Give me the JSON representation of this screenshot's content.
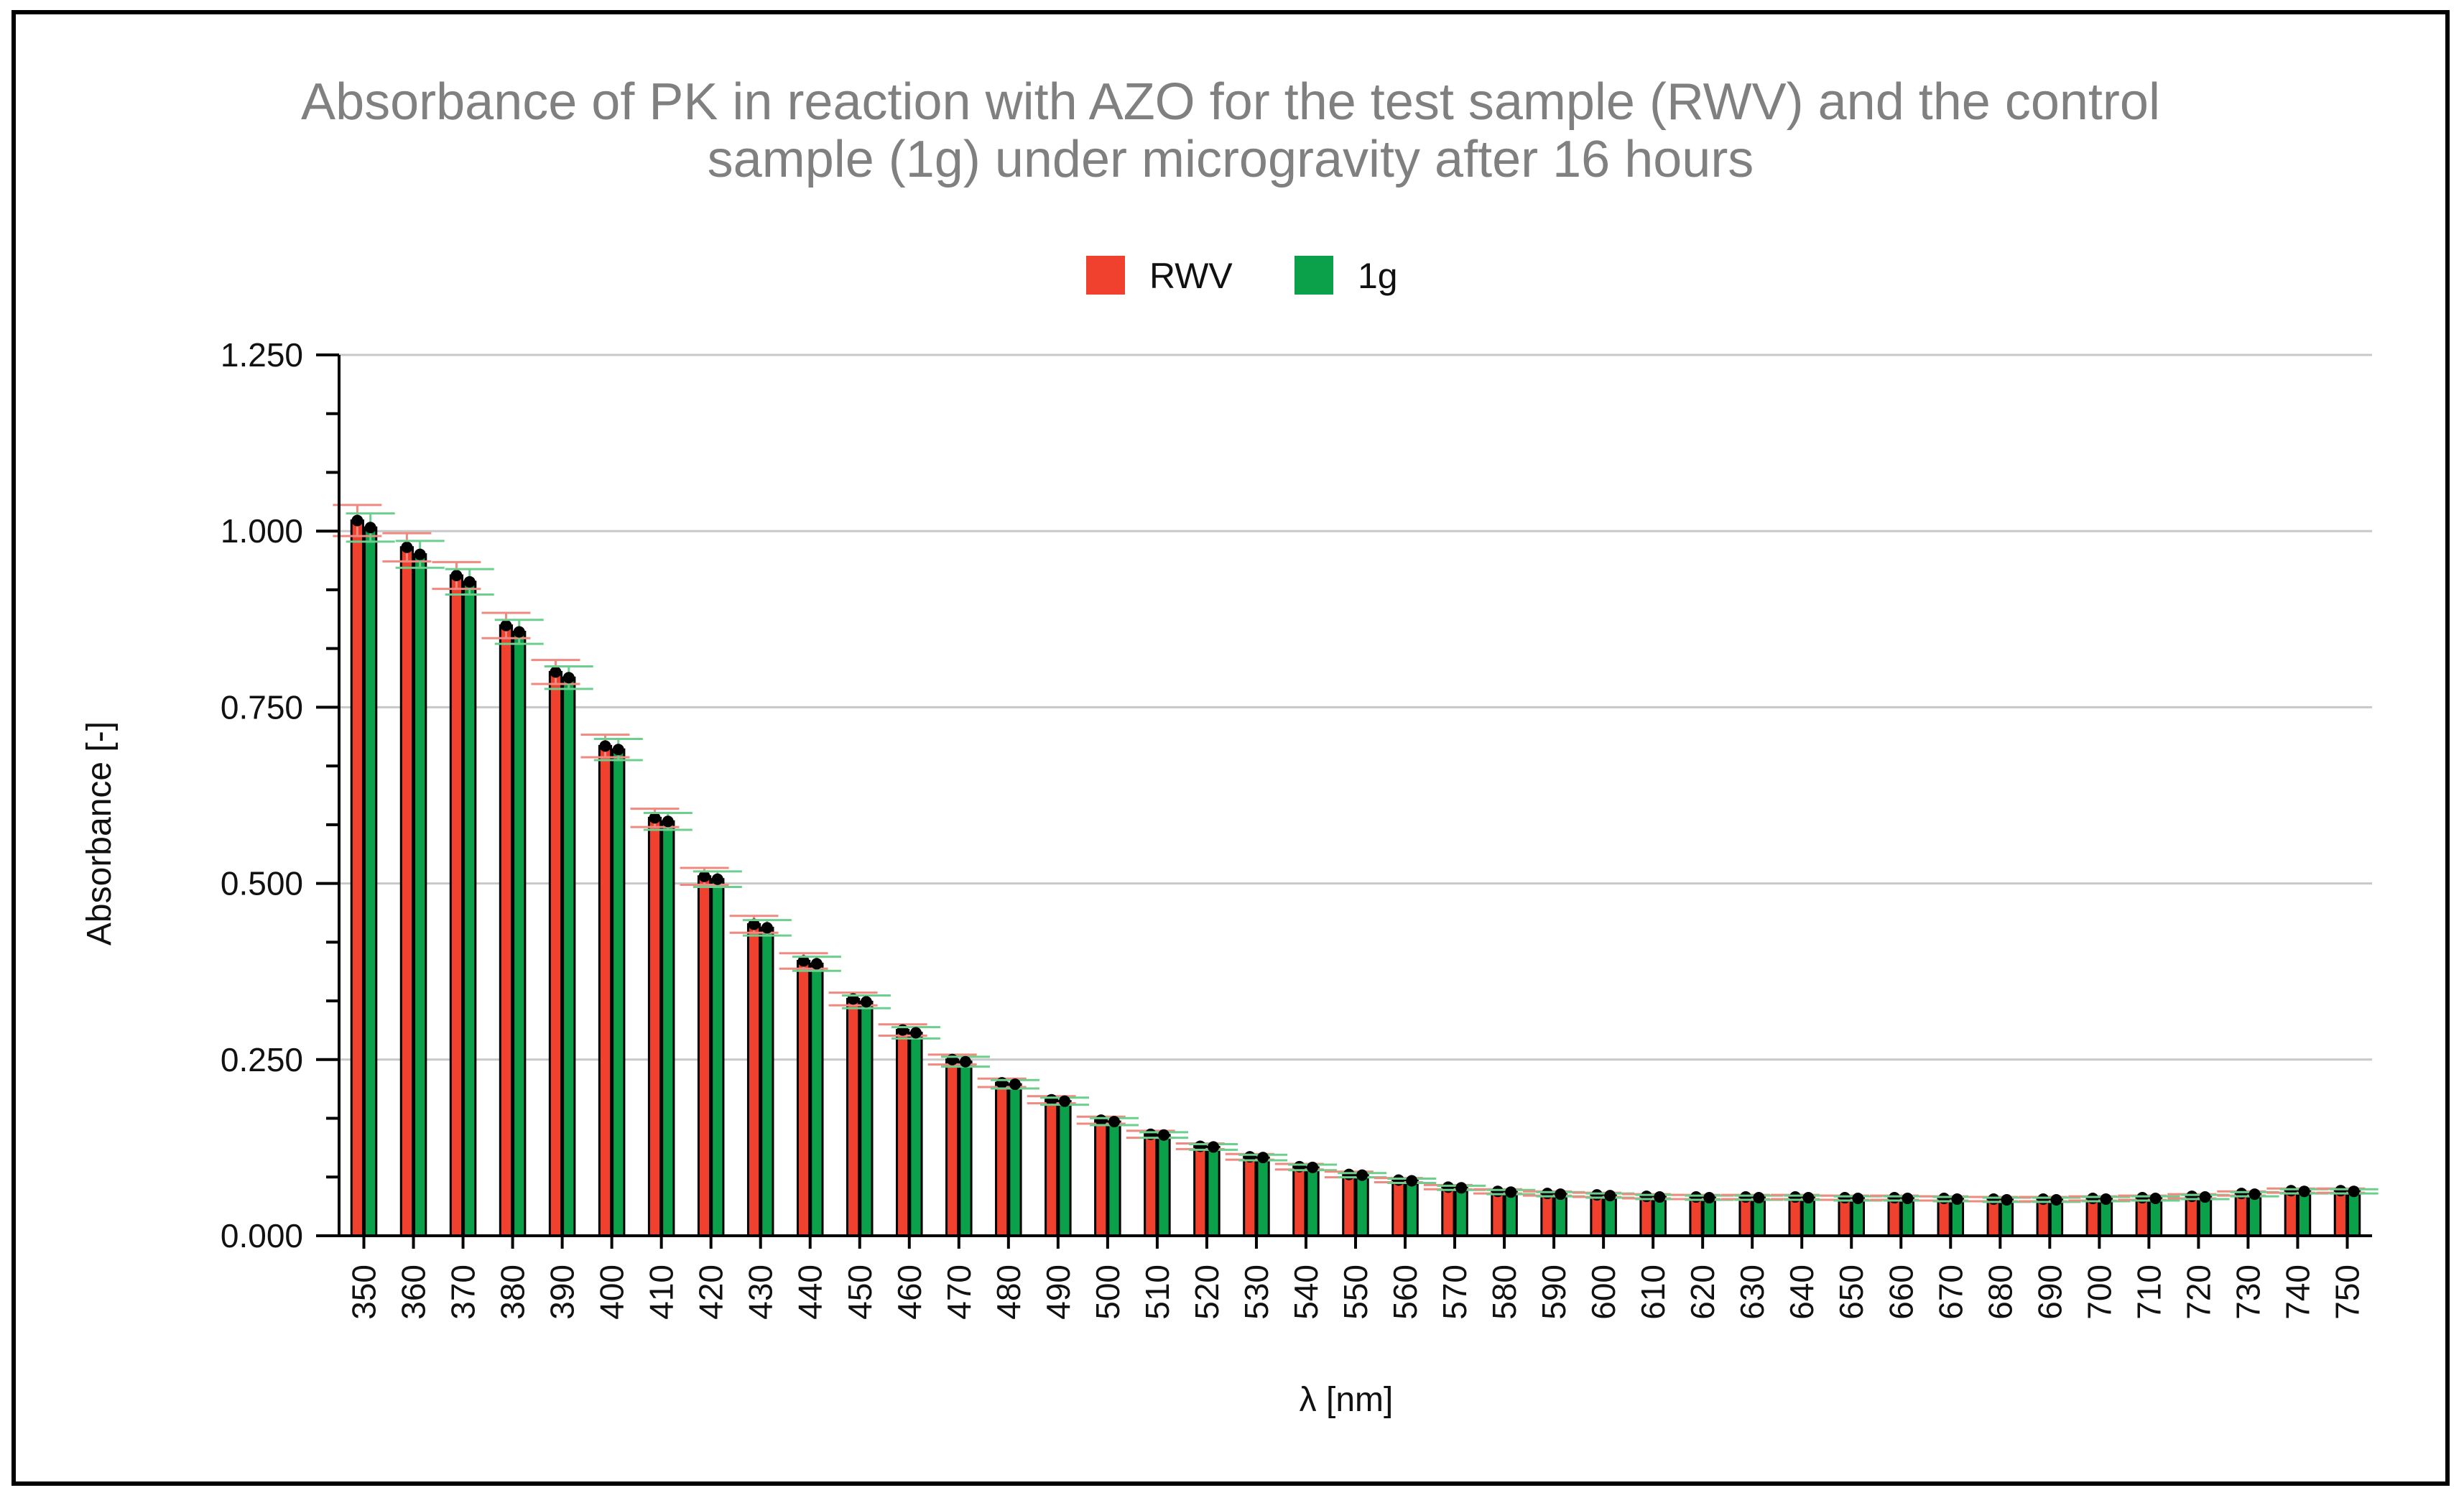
{
  "chart_data": {
    "type": "bar",
    "title_lines": [
      "Absorbance of PK in reaction with AZO for the test sample (RWV) and the control",
      "sample (1g) under microgravity after 16 hours"
    ],
    "xlabel": "λ [nm]",
    "ylabel": "Absorbance [-]",
    "ylim": [
      0,
      1.25
    ],
    "yticks": [
      "0.000",
      "0.250",
      "0.500",
      "0.750",
      "1.000",
      "1.250"
    ],
    "grid": "horizontal",
    "legend_position": "top-center",
    "categories": [
      "350",
      "360",
      "370",
      "380",
      "390",
      "400",
      "410",
      "420",
      "430",
      "440",
      "450",
      "460",
      "470",
      "480",
      "490",
      "500",
      "510",
      "520",
      "530",
      "540",
      "550",
      "560",
      "570",
      "580",
      "590",
      "600",
      "610",
      "620",
      "630",
      "640",
      "650",
      "660",
      "670",
      "680",
      "690",
      "700",
      "710",
      "720",
      "730",
      "740",
      "750"
    ],
    "series": [
      {
        "name": "RWV",
        "color": "#f0402e",
        "values": [
          1.015,
          0.977,
          0.937,
          0.866,
          0.8,
          0.695,
          0.593,
          0.51,
          0.442,
          0.39,
          0.336,
          0.292,
          0.25,
          0.217,
          0.193,
          0.164,
          0.144,
          0.127,
          0.112,
          0.098,
          0.087,
          0.079,
          0.069,
          0.063,
          0.06,
          0.058,
          0.056,
          0.055,
          0.055,
          0.055,
          0.054,
          0.054,
          0.053,
          0.052,
          0.052,
          0.053,
          0.054,
          0.056,
          0.06,
          0.064,
          0.064
        ],
        "errors": [
          0.022,
          0.02,
          0.019,
          0.018,
          0.017,
          0.016,
          0.013,
          0.012,
          0.012,
          0.011,
          0.009,
          0.008,
          0.007,
          0.006,
          0.005,
          0.005,
          0.005,
          0.004,
          0.004,
          0.004,
          0.004,
          0.003,
          0.003,
          0.003,
          0.003,
          0.003,
          0.003,
          0.003,
          0.003,
          0.003,
          0.003,
          0.003,
          0.003,
          0.003,
          0.003,
          0.003,
          0.003,
          0.003,
          0.003,
          0.003,
          0.003
        ]
      },
      {
        "name": "1g",
        "color": "#0aa14a",
        "values": [
          1.005,
          0.967,
          0.928,
          0.857,
          0.792,
          0.69,
          0.588,
          0.506,
          0.437,
          0.386,
          0.332,
          0.288,
          0.247,
          0.215,
          0.191,
          0.162,
          0.143,
          0.126,
          0.111,
          0.097,
          0.086,
          0.078,
          0.068,
          0.062,
          0.059,
          0.057,
          0.055,
          0.054,
          0.054,
          0.054,
          0.053,
          0.053,
          0.052,
          0.051,
          0.051,
          0.052,
          0.053,
          0.055,
          0.059,
          0.063,
          0.063
        ],
        "errors": [
          0.02,
          0.019,
          0.018,
          0.017,
          0.016,
          0.015,
          0.012,
          0.011,
          0.011,
          0.01,
          0.009,
          0.008,
          0.007,
          0.006,
          0.005,
          0.005,
          0.004,
          0.004,
          0.004,
          0.004,
          0.003,
          0.003,
          0.003,
          0.003,
          0.003,
          0.003,
          0.003,
          0.003,
          0.003,
          0.003,
          0.003,
          0.003,
          0.003,
          0.003,
          0.003,
          0.003,
          0.003,
          0.003,
          0.003,
          0.003,
          0.003
        ]
      }
    ]
  }
}
